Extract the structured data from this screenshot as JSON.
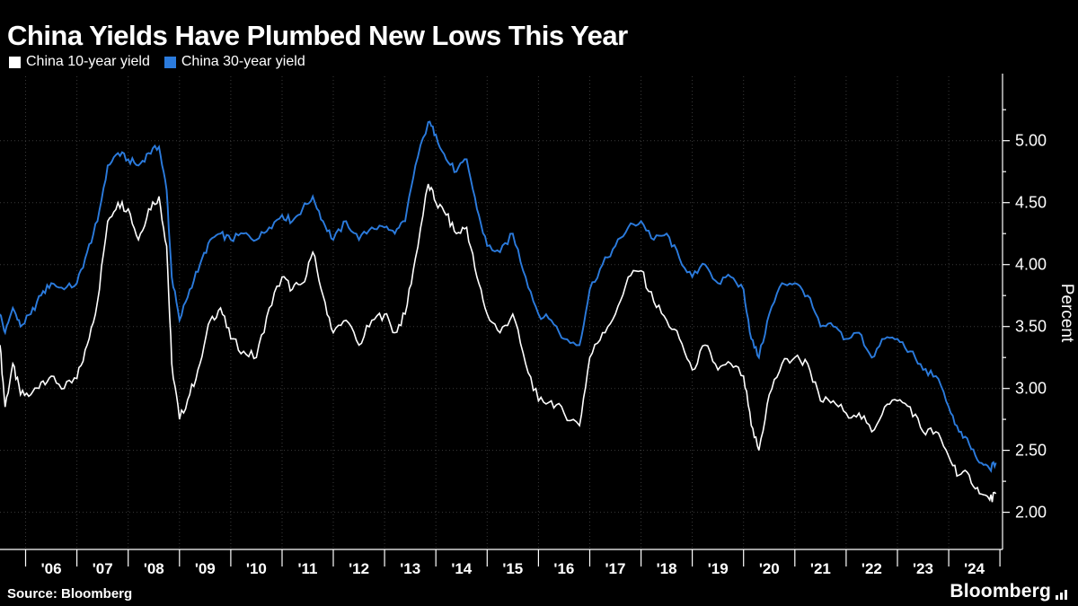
{
  "header": {
    "title": "China Yields Have Plumbed New Lows This Year"
  },
  "legend": [
    {
      "label": "China 10-year yield",
      "color": "#ffffff"
    },
    {
      "label": "China 30-year yield",
      "color": "#2b7bdd"
    }
  ],
  "footer": {
    "source": "Source: Bloomberg",
    "brand": "Bloomberg"
  },
  "colors": {
    "background": "#000000",
    "grid": "#3a3a3a",
    "axis": "#ffffff",
    "text": "#ffffff"
  },
  "chart_data": {
    "type": "line",
    "title": "China Yields Have Plumbed New Lows This Year",
    "ylabel": "Percent",
    "xlabel": "",
    "grid": true,
    "legend_position": "top-left",
    "xlim": [
      2005.5,
      2025.05
    ],
    "ylim": [
      1.7,
      5.52
    ],
    "ytick_values": [
      2.0,
      2.5,
      3.0,
      3.5,
      4.0,
      4.5,
      5.0
    ],
    "ytick_labels": [
      "2.00",
      "2.50",
      "3.00",
      "3.50",
      "4.00",
      "4.50",
      "5.00"
    ],
    "xgrid_years": [
      2006,
      2007,
      2008,
      2009,
      2010,
      2011,
      2012,
      2013,
      2014,
      2015,
      2016,
      2017,
      2018,
      2019,
      2020,
      2021,
      2022,
      2023,
      2024
    ],
    "xtick_tick_years": [
      2006,
      2007,
      2008,
      2009,
      2010,
      2011,
      2012,
      2013,
      2014,
      2015,
      2016,
      2017,
      2018,
      2019,
      2020,
      2021,
      2022,
      2023,
      2024,
      2025
    ],
    "xtick_positions": [
      2006.5,
      2007.5,
      2008.5,
      2009.5,
      2010.5,
      2011.5,
      2012.5,
      2013.5,
      2014.5,
      2015.5,
      2016.5,
      2017.5,
      2018.5,
      2019.5,
      2020.5,
      2021.5,
      2022.5,
      2023.5,
      2024.5
    ],
    "xtick_labels": [
      "'06",
      "'07",
      "'08",
      "'09",
      "'10",
      "'11",
      "'12",
      "'13",
      "'14",
      "'15",
      "'16",
      "'17",
      "'18",
      "'19",
      "'20",
      "'21",
      "'22",
      "'23",
      "'24"
    ],
    "x": [
      2005.5,
      2005.6,
      2005.75,
      2005.9,
      2006.1,
      2006.3,
      2006.5,
      2006.75,
      2007.0,
      2007.2,
      2007.4,
      2007.6,
      2007.8,
      2008.0,
      2008.2,
      2008.4,
      2008.6,
      2008.75,
      2008.85,
      2009.0,
      2009.2,
      2009.4,
      2009.6,
      2009.8,
      2010.0,
      2010.25,
      2010.5,
      2010.75,
      2011.0,
      2011.2,
      2011.4,
      2011.6,
      2011.8,
      2012.0,
      2012.25,
      2012.5,
      2012.75,
      2013.0,
      2013.2,
      2013.4,
      2013.6,
      2013.85,
      2014.0,
      2014.2,
      2014.4,
      2014.6,
      2014.8,
      2015.0,
      2015.25,
      2015.5,
      2015.75,
      2016.0,
      2016.25,
      2016.5,
      2016.8,
      2017.0,
      2017.25,
      2017.5,
      2017.75,
      2018.0,
      2018.25,
      2018.5,
      2018.75,
      2019.0,
      2019.25,
      2019.5,
      2019.75,
      2020.0,
      2020.15,
      2020.3,
      2020.5,
      2020.75,
      2021.0,
      2021.25,
      2021.5,
      2021.75,
      2022.0,
      2022.25,
      2022.5,
      2022.75,
      2023.0,
      2023.25,
      2023.5,
      2023.75,
      2024.0,
      2024.2,
      2024.4,
      2024.6,
      2024.8,
      2024.92
    ],
    "series": [
      {
        "name": "China 10-year yield",
        "color": "#ffffff",
        "values": [
          3.35,
          2.85,
          3.2,
          2.95,
          2.95,
          3.05,
          3.1,
          3.0,
          3.08,
          3.35,
          3.7,
          4.35,
          4.5,
          4.45,
          4.2,
          4.45,
          4.55,
          4.15,
          3.2,
          2.75,
          2.95,
          3.2,
          3.55,
          3.65,
          3.4,
          3.3,
          3.25,
          3.65,
          3.9,
          3.8,
          3.85,
          4.1,
          3.75,
          3.45,
          3.55,
          3.35,
          3.55,
          3.6,
          3.45,
          3.6,
          4.05,
          4.65,
          4.5,
          4.4,
          4.25,
          4.3,
          3.9,
          3.6,
          3.45,
          3.6,
          3.2,
          2.9,
          2.9,
          2.8,
          2.7,
          3.25,
          3.45,
          3.6,
          3.9,
          3.95,
          3.7,
          3.55,
          3.4,
          3.15,
          3.35,
          3.15,
          3.2,
          3.1,
          2.7,
          2.5,
          2.95,
          3.2,
          3.25,
          3.2,
          2.9,
          2.9,
          2.8,
          2.8,
          2.65,
          2.85,
          2.9,
          2.85,
          2.65,
          2.65,
          2.45,
          2.3,
          2.3,
          2.15,
          2.1,
          2.15
        ]
      },
      {
        "name": "China 30-year yield",
        "color": "#2b7bdd",
        "values": [
          3.6,
          3.45,
          3.65,
          3.5,
          3.6,
          3.75,
          3.85,
          3.8,
          3.85,
          4.1,
          4.35,
          4.8,
          4.9,
          4.85,
          4.8,
          4.9,
          4.95,
          4.6,
          3.9,
          3.55,
          3.8,
          4.0,
          4.2,
          4.25,
          4.2,
          4.25,
          4.2,
          4.3,
          4.4,
          4.35,
          4.45,
          4.55,
          4.35,
          4.2,
          4.35,
          4.2,
          4.3,
          4.3,
          4.25,
          4.35,
          4.8,
          5.15,
          5.05,
          4.85,
          4.75,
          4.85,
          4.45,
          4.15,
          4.1,
          4.25,
          3.9,
          3.6,
          3.55,
          3.4,
          3.35,
          3.8,
          4.0,
          4.15,
          4.3,
          4.35,
          4.2,
          4.25,
          4.05,
          3.9,
          4.0,
          3.85,
          3.9,
          3.8,
          3.4,
          3.25,
          3.6,
          3.85,
          3.85,
          3.75,
          3.5,
          3.5,
          3.4,
          3.45,
          3.25,
          3.4,
          3.4,
          3.3,
          3.15,
          3.1,
          2.85,
          2.65,
          2.55,
          2.4,
          2.35,
          2.4
        ]
      }
    ]
  }
}
